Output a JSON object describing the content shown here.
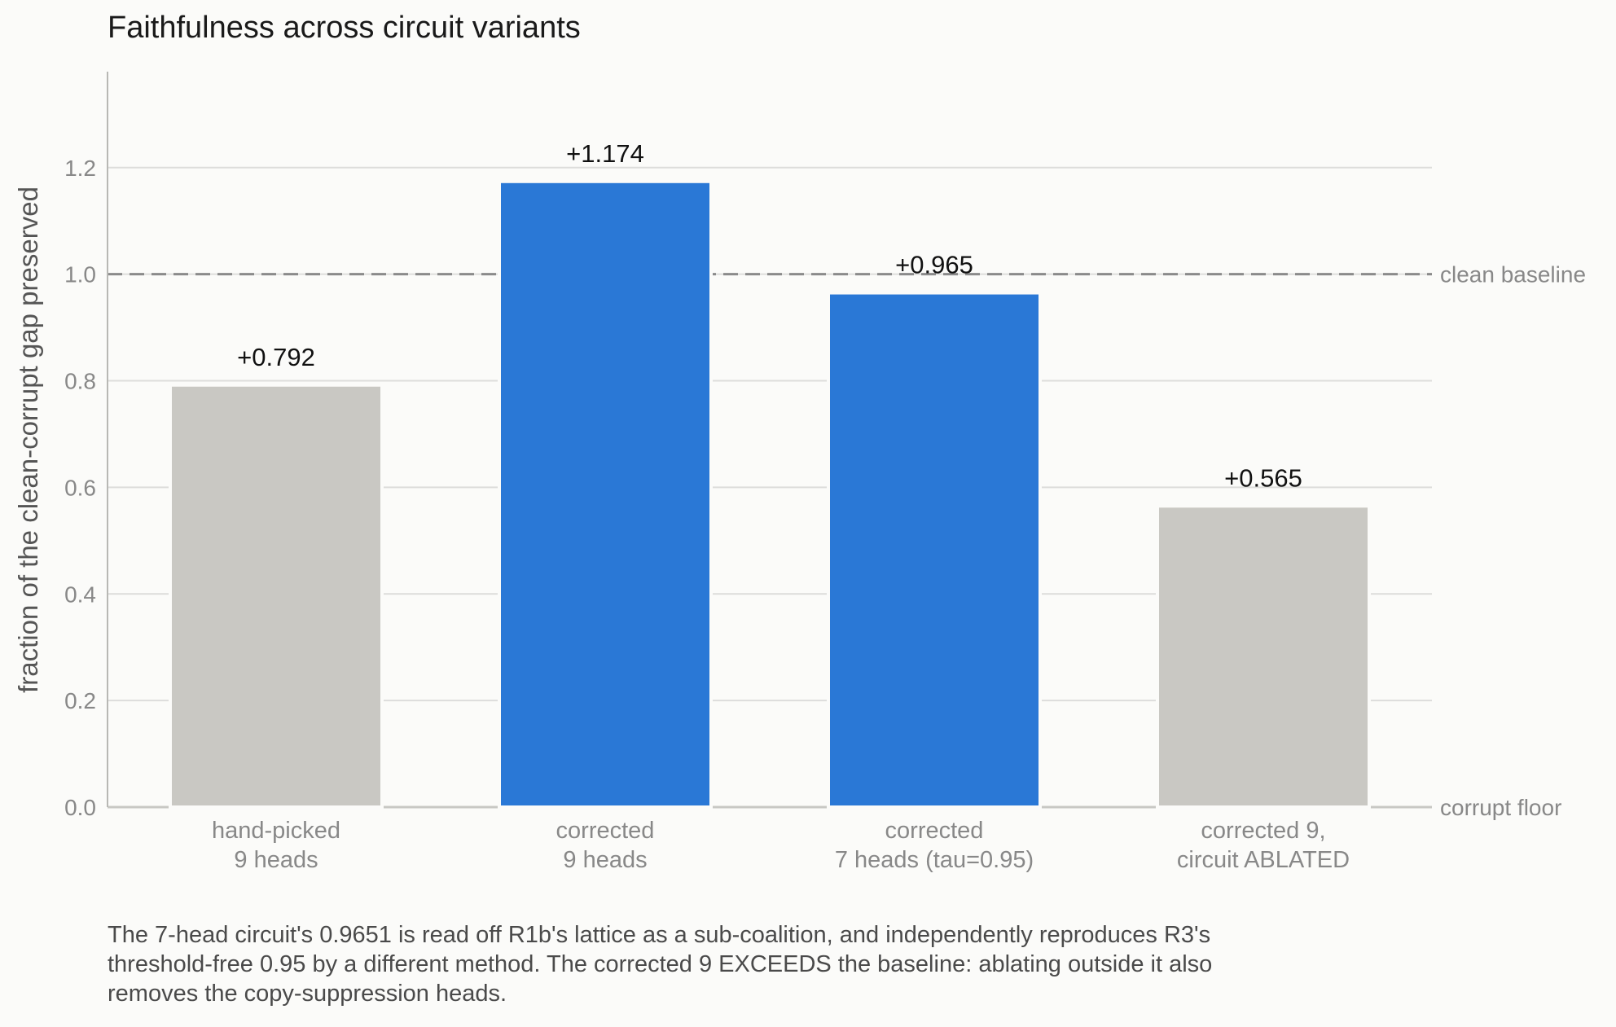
{
  "chart_data": {
    "type": "bar",
    "title": "Faithfulness across circuit variants",
    "ylabel": "fraction of the clean-corrupt gap preserved",
    "xlabel": "",
    "ylim": [
      0,
      1.38
    ],
    "yticks": [
      "0.0",
      "0.2",
      "0.4",
      "0.6",
      "0.8",
      "1.0",
      "1.2"
    ],
    "grid": "horizontal",
    "categories": [
      [
        "hand-picked",
        "9 heads"
      ],
      [
        "corrected",
        "9 heads"
      ],
      [
        "corrected",
        "7 heads (tau=0.95)"
      ],
      [
        "corrected 9,",
        "circuit ABLATED"
      ]
    ],
    "values": [
      0.792,
      1.174,
      0.965,
      0.565
    ],
    "value_labels": [
      "+0.792",
      "+1.174",
      "+0.965",
      "+0.565"
    ],
    "bar_colors": [
      "#c9c8c3",
      "#2a78d6",
      "#2a78d6",
      "#c9c8c3"
    ],
    "reference_lines": [
      {
        "y": 1.0,
        "label": "clean baseline",
        "style": "dashed"
      },
      {
        "y": 0.0,
        "label": "corrupt floor",
        "style": "solid"
      }
    ]
  },
  "caption": "The 7-head circuit's 0.9651 is read off R1b's lattice as a sub-coalition, and independently reproduces R3's\nthreshold-free 0.95 by a different method. The corrected 9 EXCEEDS the baseline: ablating outside it also\nremoves the copy-suppression heads.",
  "colors": {
    "background": "#fbfbf9",
    "highlight_bar": "#2a78d6",
    "muted_bar": "#c9c8c3",
    "grid": "#dddddb",
    "axis_text": "#888888",
    "title_text": "#1a1a1a"
  }
}
